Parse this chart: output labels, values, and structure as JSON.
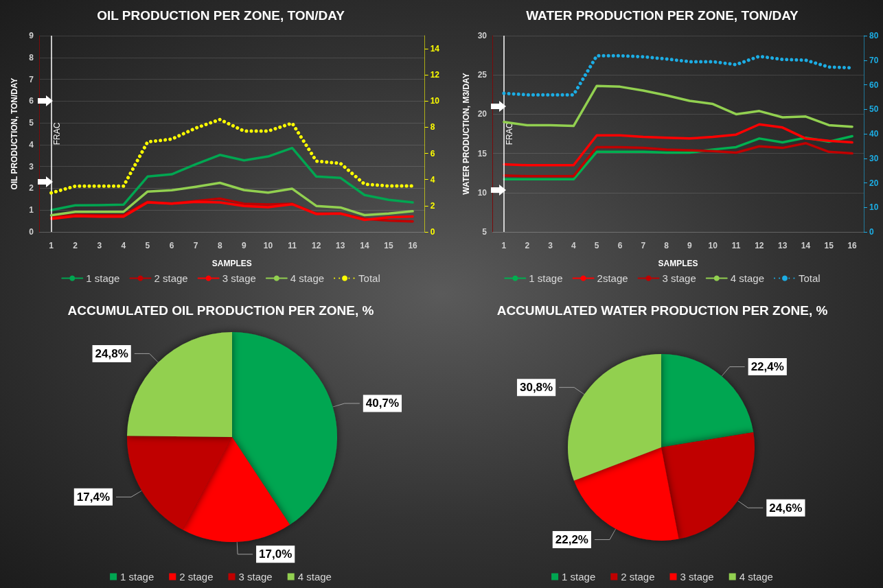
{
  "chart_data": [
    {
      "type": "line",
      "title": "OIL PRODUCTION PER ZONE, TON/DAY",
      "xlabel": "SAMPLES",
      "ylabel": "OIL PRODUCTION, TON/DAY",
      "x": [
        1,
        2,
        3,
        4,
        5,
        6,
        7,
        8,
        9,
        10,
        11,
        12,
        13,
        14,
        15,
        16
      ],
      "xlim": [
        0.5,
        16.5
      ],
      "xticks": [
        1,
        2,
        3,
        4,
        5,
        6,
        7,
        8,
        9,
        10,
        11,
        12,
        13,
        14,
        15,
        16
      ],
      "ylim": [
        0,
        9
      ],
      "yticks": [
        0,
        1,
        2,
        3,
        4,
        5,
        6,
        7,
        8,
        9
      ],
      "y2lim": [
        0,
        15
      ],
      "y2ticks": [
        0,
        2,
        4,
        6,
        8,
        10,
        12,
        14
      ],
      "grid": "y",
      "legend": "bottom",
      "marker": "none",
      "line_style": "solid",
      "ref_lines": [
        {
          "axis": "x",
          "value": 1,
          "label": "FRAC",
          "color": "#ffffff"
        }
      ],
      "series": [
        {
          "name": "1 stage",
          "color": "#00a651",
          "values": [
            1.0,
            1.22,
            1.23,
            1.25,
            2.54,
            2.64,
            3.1,
            3.53,
            3.28,
            3.46,
            3.85,
            2.54,
            2.48,
            1.69,
            1.47,
            1.35
          ]
        },
        {
          "name": "2 stage",
          "color": "#c00000",
          "values": [
            0.65,
            0.78,
            0.76,
            0.76,
            1.38,
            1.3,
            1.42,
            1.53,
            1.29,
            1.26,
            1.29,
            0.84,
            0.84,
            0.6,
            0.52,
            0.48
          ]
        },
        {
          "name": "3 stage",
          "color": "#ff0000",
          "values": [
            0.6,
            0.72,
            0.7,
            0.7,
            1.35,
            1.3,
            1.38,
            1.35,
            1.19,
            1.13,
            1.27,
            0.82,
            0.84,
            0.55,
            0.67,
            0.71
          ]
        },
        {
          "name": "4 stage",
          "color": "#92d050",
          "values": [
            0.76,
            0.92,
            0.92,
            0.92,
            1.85,
            1.91,
            2.07,
            2.25,
            1.92,
            1.8,
            1.98,
            1.19,
            1.12,
            0.77,
            0.84,
            0.95
          ]
        },
        {
          "name": "Total",
          "color": "#ffff00",
          "axis": "y2",
          "line_style": "dotted",
          "values": [
            2.98,
            3.5,
            3.5,
            3.5,
            6.88,
            7.09,
            7.94,
            8.59,
            7.71,
            7.71,
            8.31,
            5.41,
            5.24,
            3.65,
            3.51,
            3.51
          ]
        }
      ]
    },
    {
      "type": "line",
      "title": "WATER PRODUCTION PER ZONE, TON/DAY",
      "xlabel": "SAMPLES",
      "ylabel": "WATER PRODUCTION, M3/DAY",
      "x": [
        1,
        2,
        3,
        4,
        5,
        6,
        7,
        8,
        9,
        10,
        11,
        12,
        13,
        14,
        15,
        16
      ],
      "xlim": [
        0.5,
        16.5
      ],
      "xticks": [
        1,
        2,
        3,
        4,
        5,
        6,
        7,
        8,
        9,
        10,
        11,
        12,
        13,
        14,
        15,
        16
      ],
      "ylim": [
        5,
        30
      ],
      "yticks": [
        5,
        10,
        15,
        20,
        25,
        30
      ],
      "y2lim": [
        0,
        80
      ],
      "y2ticks": [
        0,
        10,
        20,
        30,
        40,
        50,
        60,
        70,
        80
      ],
      "grid": "y",
      "legend": "bottom",
      "marker": "none",
      "line_style": "solid",
      "ref_lines": [
        {
          "axis": "x",
          "value": 1,
          "label": "FRAC",
          "color": "#ffffff"
        }
      ],
      "series": [
        {
          "name": "1 stage",
          "color": "#00b050",
          "values": [
            11.7,
            11.7,
            11.7,
            11.7,
            15.2,
            15.2,
            15.2,
            15.1,
            15.1,
            15.5,
            15.8,
            16.9,
            16.4,
            17.0,
            16.5,
            17.2
          ]
        },
        {
          "name": "2stage",
          "color": "#ff0000",
          "values": [
            13.6,
            13.5,
            13.5,
            13.5,
            17.3,
            17.3,
            17.1,
            17.0,
            16.9,
            17.1,
            17.4,
            18.7,
            18.3,
            16.9,
            16.6,
            16.4
          ]
        },
        {
          "name": "3 stage",
          "color": "#c00000",
          "values": [
            12.2,
            12.1,
            12.1,
            12.1,
            15.8,
            15.8,
            15.7,
            15.5,
            15.4,
            15.3,
            15.1,
            15.9,
            15.7,
            16.3,
            15.2,
            15.0
          ]
        },
        {
          "name": "4 stage",
          "color": "#92d050",
          "values": [
            19.0,
            18.6,
            18.6,
            18.5,
            23.6,
            23.5,
            23.0,
            22.4,
            21.7,
            21.3,
            20.0,
            20.4,
            19.6,
            19.7,
            18.6,
            18.4
          ]
        },
        {
          "name": "Total",
          "color": "#1cade4",
          "axis": "y2",
          "line_style": "dotted",
          "values": [
            56.5,
            55.9,
            55.9,
            55.9,
            71.8,
            71.8,
            71.4,
            70.5,
            69.4,
            69.4,
            68.2,
            71.6,
            70.3,
            70.0,
            67.2,
            66.9
          ]
        }
      ]
    },
    {
      "type": "pie",
      "title": "ACCUMULATED OIL PRODUCTION PER ZONE, %",
      "categories": [
        "1 stage",
        "2 stage",
        "3 stage",
        "4 stage"
      ],
      "values": [
        40.7,
        17.0,
        17.4,
        24.8
      ],
      "colors": [
        "#00a651",
        "#ff0000",
        "#c00000",
        "#92d050"
      ],
      "value_labels": [
        "40,7%",
        "17,0%",
        "17,4%",
        "24,8%"
      ],
      "legend": "bottom"
    },
    {
      "type": "pie",
      "title": "ACCUMULATED WATER PRODUCTION PER ZONE, %",
      "categories": [
        "1 stage",
        "2 stage",
        "3 stage",
        "4 stage"
      ],
      "values": [
        22.4,
        24.6,
        22.2,
        30.8
      ],
      "colors": [
        "#00a651",
        "#c00000",
        "#ff0000",
        "#92d050"
      ],
      "value_labels": [
        "22,4%",
        "24,6%",
        "22,2%",
        "30,8%"
      ],
      "legend": "bottom"
    }
  ]
}
